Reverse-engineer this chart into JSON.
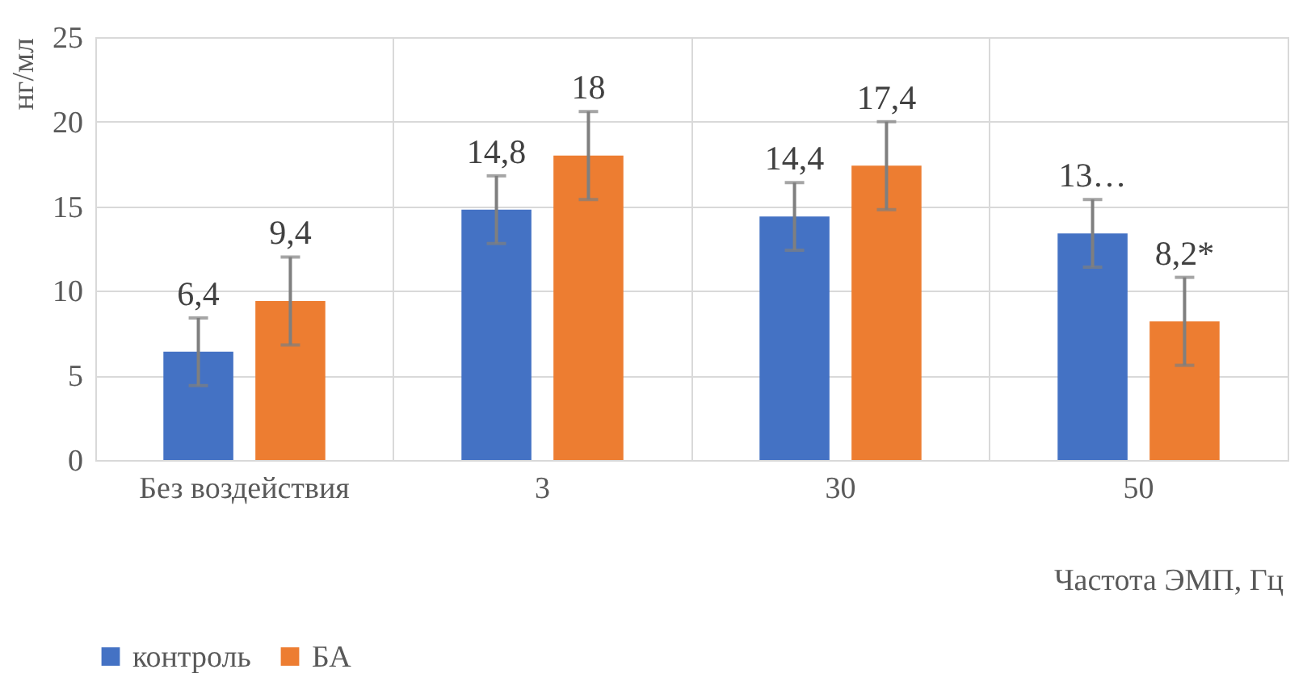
{
  "chart_data": {
    "type": "bar",
    "xlabel": "Частота ЭМП, Гц",
    "ylabel": "нг/мл",
    "categories": [
      "Без воздействия",
      "3",
      "30",
      "50"
    ],
    "series": [
      {
        "name": "контроль",
        "color": "#4472c4",
        "values": [
          6.4,
          14.8,
          14.4,
          13.4
        ],
        "errors": [
          2,
          2,
          2,
          2
        ],
        "value_labels": [
          "6,4",
          "14,8",
          "14,4",
          "13…"
        ]
      },
      {
        "name": "БА",
        "color": "#ed7d31",
        "values": [
          9.4,
          18,
          17.4,
          8.2
        ],
        "errors": [
          2.6,
          2.6,
          2.6,
          2.6
        ],
        "value_labels": [
          "9,4",
          "18",
          "17,4",
          "8,2*"
        ]
      }
    ],
    "ylim": [
      0,
      25
    ],
    "yticks": [
      0,
      5,
      10,
      15,
      20,
      25
    ],
    "grid": true,
    "legend": "bottom"
  }
}
